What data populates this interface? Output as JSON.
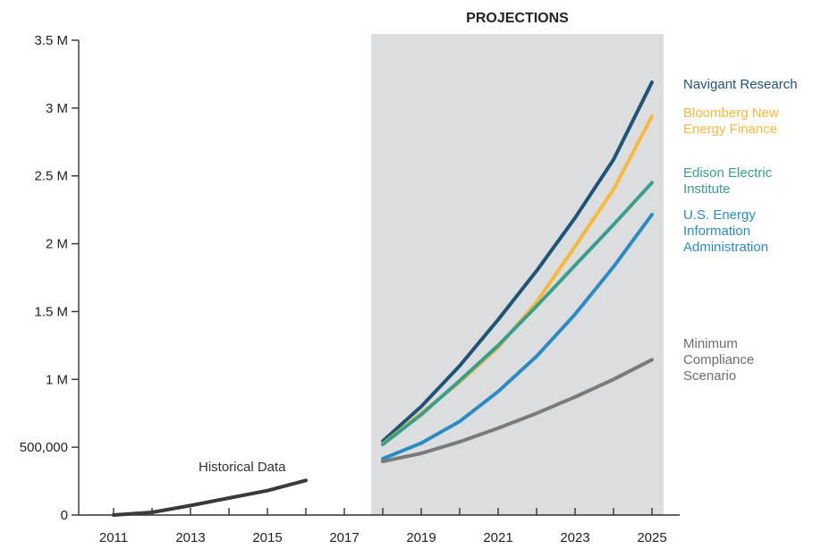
{
  "chart_data": {
    "type": "line",
    "title": "",
    "xlabel": "",
    "ylabel": "",
    "xlim": [
      2011,
      2025
    ],
    "ylim": [
      0,
      3500000
    ],
    "x_ticks": [
      2011,
      2012,
      2013,
      2014,
      2015,
      2016,
      2017,
      2018,
      2019,
      2020,
      2021,
      2022,
      2023,
      2024,
      2025
    ],
    "x_tick_labels": [
      {
        "x": 2011,
        "label": "2011"
      },
      {
        "x": 2013,
        "label": "2013"
      },
      {
        "x": 2015,
        "label": "2015"
      },
      {
        "x": 2017,
        "label": "2017"
      },
      {
        "x": 2019,
        "label": "2019"
      },
      {
        "x": 2021,
        "label": "2021"
      },
      {
        "x": 2023,
        "label": "2023"
      },
      {
        "x": 2025,
        "label": "2025"
      }
    ],
    "y_ticks": [
      {
        "value": 0,
        "label": "0"
      },
      {
        "value": 500000,
        "label": "500,000"
      },
      {
        "value": 1000000,
        "label": "1 M"
      },
      {
        "value": 1500000,
        "label": "1.5 M"
      },
      {
        "value": 2000000,
        "label": "2 M"
      },
      {
        "value": 2500000,
        "label": "2.5 M"
      },
      {
        "value": 3000000,
        "label": "3 M"
      },
      {
        "value": 3500000,
        "label": "3.5 M"
      }
    ],
    "projection_region": {
      "label": "PROJECTIONS",
      "x_start": 2017.7,
      "x_end": 2025.3,
      "color": "#dcdddf"
    },
    "grid": false,
    "series": [
      {
        "name": "Historical Data",
        "color": "#3a3a3a",
        "x": [
          2011,
          2012,
          2013,
          2014,
          2015,
          2016
        ],
        "values": [
          0,
          20000,
          70000,
          125000,
          180000,
          255000
        ],
        "label_lines": [
          "Historical Data"
        ]
      },
      {
        "name": "Navigant Research",
        "color": "#1e5478",
        "x": [
          2018,
          2019,
          2020,
          2021,
          2022,
          2023,
          2024,
          2025
        ],
        "values": [
          545000,
          800000,
          1100000,
          1440000,
          1800000,
          2190000,
          2620000,
          3190000
        ],
        "label_lines": [
          "Navigant Research"
        ]
      },
      {
        "name": "Bloomberg New Energy Finance",
        "color": "#f6b93b",
        "x": [
          2018,
          2019,
          2020,
          2021,
          2022,
          2023,
          2024,
          2025
        ],
        "values": [
          525000,
          750000,
          980000,
          1235000,
          1570000,
          1980000,
          2400000,
          2940000
        ],
        "label_lines": [
          "Bloomberg New",
          "Energy Finance"
        ]
      },
      {
        "name": "Edison Electric Institute",
        "color": "#3a9e8e",
        "x": [
          2018,
          2019,
          2020,
          2021,
          2022,
          2023,
          2024,
          2025
        ],
        "values": [
          520000,
          740000,
          990000,
          1250000,
          1540000,
          1840000,
          2140000,
          2450000
        ],
        "label_lines": [
          "Edison Electric",
          "Institute"
        ]
      },
      {
        "name": "U.S. Energy Information Administration",
        "color": "#2b8cc4",
        "x": [
          2018,
          2019,
          2020,
          2021,
          2022,
          2023,
          2024,
          2025
        ],
        "values": [
          415000,
          530000,
          690000,
          910000,
          1170000,
          1480000,
          1830000,
          2215000
        ],
        "label_lines": [
          "U.S. Energy",
          "Information",
          "Administration"
        ]
      },
      {
        "name": "Minimum Compliance Scenario",
        "color": "#7a7a7a",
        "x": [
          2018,
          2019,
          2020,
          2021,
          2022,
          2023,
          2024,
          2025
        ],
        "values": [
          395000,
          455000,
          540000,
          640000,
          750000,
          870000,
          1000000,
          1145000
        ],
        "label_lines": [
          "Minimum",
          "Compliance",
          "Scenario"
        ]
      }
    ]
  }
}
